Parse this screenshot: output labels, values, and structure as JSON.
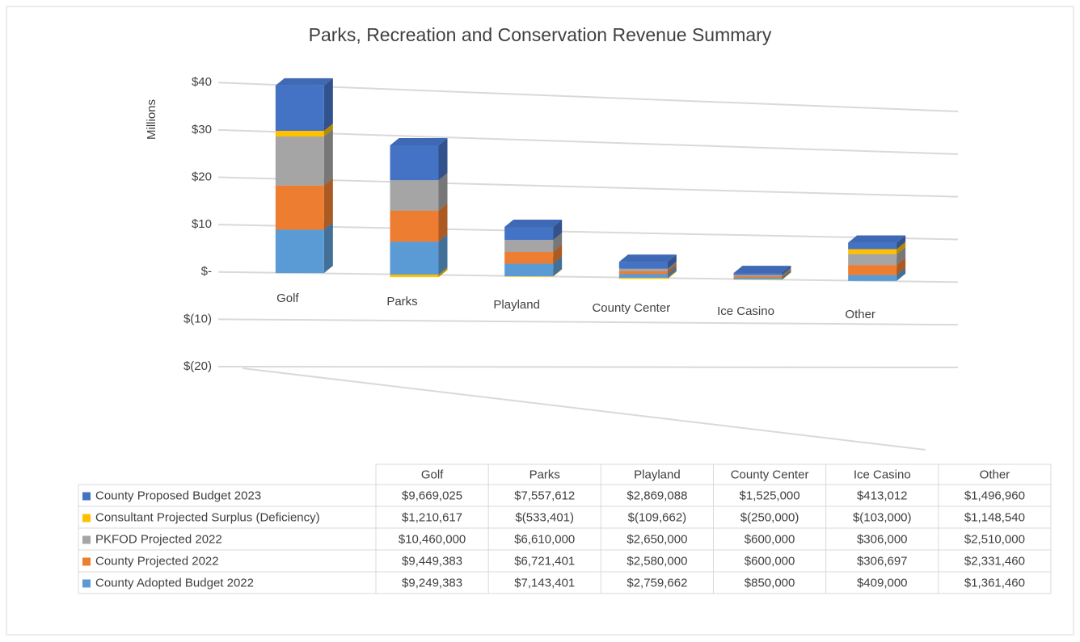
{
  "chart_data": {
    "type": "bar3d_stacked",
    "title": "Parks, Recreation and Conservation Revenue Summary",
    "y_label": "Millions",
    "categories": [
      "Golf",
      "Parks",
      "Playland",
      "County Center",
      "Ice Casino",
      "Other"
    ],
    "series": [
      {
        "name": "County Adopted Budget 2022",
        "color": "#5b9bd5",
        "values": [
          9.249383,
          7.143401,
          2.759662,
          0.85,
          0.409,
          1.36146
        ],
        "value_labels": [
          "$9,249,383",
          "$7,143,401",
          "$2,759,662",
          "$850,000",
          "$409,000",
          "$1,361,460"
        ]
      },
      {
        "name": "County Projected 2022",
        "color": "#ed7d31",
        "values": [
          9.449383,
          6.721401,
          2.58,
          0.6,
          0.306697,
          2.33146
        ],
        "value_labels": [
          "$9,449,383",
          "$6,721,401",
          "$2,580,000",
          "$600,000",
          "$306,697",
          "$2,331,460"
        ]
      },
      {
        "name": "PKFOD Projected 2022",
        "color": "#a5a5a5",
        "values": [
          10.46,
          6.61,
          2.65,
          0.6,
          0.306,
          2.51
        ],
        "value_labels": [
          "$10,460,000",
          "$6,610,000",
          "$2,650,000",
          "$600,000",
          "$306,000",
          "$2,510,000"
        ]
      },
      {
        "name": "Consultant Projected Surplus (Deficiency)",
        "color": "#ffc000",
        "values": [
          1.210617,
          -0.533401,
          -0.109662,
          -0.25,
          -0.103,
          1.14854
        ],
        "value_labels": [
          "$1,210,617",
          "$(533,401)",
          "$(109,662)",
          "$(250,000)",
          "$(103,000)",
          "$1,148,540"
        ]
      },
      {
        "name": "County Proposed Budget 2023",
        "color": "#4472c4",
        "values": [
          9.669025,
          7.557612,
          2.869088,
          1.525,
          0.413012,
          1.49696
        ],
        "value_labels": [
          "$9,669,025",
          "$7,557,612",
          "$2,869,088",
          "$1,525,000",
          "$413,012",
          "$1,496,960"
        ]
      }
    ],
    "ylim": [
      -20,
      40
    ],
    "yticks": [
      {
        "value": -20,
        "label": "$(20)"
      },
      {
        "value": -10,
        "label": "$(10)"
      },
      {
        "value": 0,
        "label": "$-"
      },
      {
        "value": 10,
        "label": "$10"
      },
      {
        "value": 20,
        "label": "$20"
      },
      {
        "value": 30,
        "label": "$30"
      },
      {
        "value": 40,
        "label": "$40"
      }
    ],
    "grid": true,
    "legend": "table"
  }
}
